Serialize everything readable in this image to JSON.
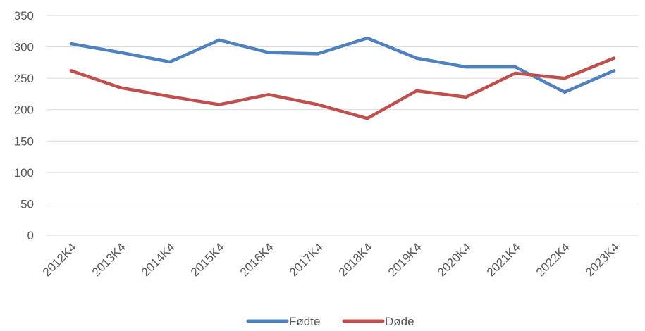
{
  "chart_data": {
    "type": "line",
    "categories": [
      "2012K4",
      "2013K4",
      "2014K4",
      "2015K4",
      "2016K4",
      "2017K4",
      "2018K4",
      "2019K4",
      "2020K4",
      "2021K4",
      "2022K4",
      "2023K4"
    ],
    "series": [
      {
        "name": "Fødte",
        "color": "#4E81BD",
        "values": [
          305,
          291,
          276,
          311,
          291,
          289,
          314,
          282,
          268,
          268,
          228,
          262
        ]
      },
      {
        "name": "Døde",
        "color": "#C0504D",
        "values": [
          262,
          235,
          221,
          208,
          224,
          208,
          186,
          230,
          220,
          258,
          250,
          282
        ]
      }
    ],
    "ylim": [
      0,
      350
    ],
    "yticks": [
      0,
      50,
      100,
      150,
      200,
      250,
      300,
      350
    ],
    "grid": true,
    "legend": "bottom",
    "title": "",
    "xlabel": "",
    "ylabel": ""
  }
}
